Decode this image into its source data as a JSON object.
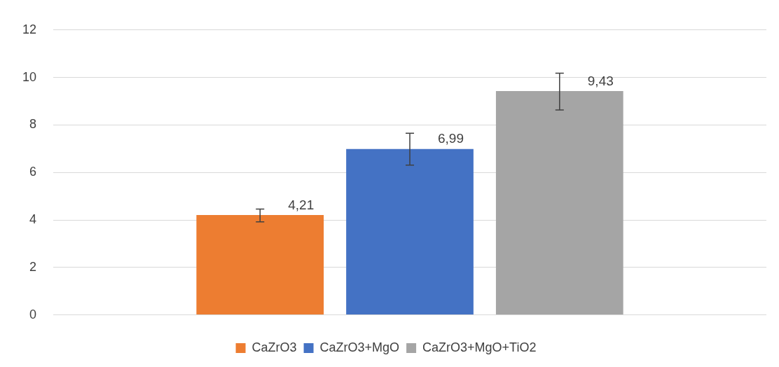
{
  "chart_data": {
    "type": "bar",
    "categories": [
      null
    ],
    "series": [
      {
        "name": "CaZrO3",
        "color": "#ed7d31",
        "values": [
          4.21
        ],
        "errors": [
          [
            3.92,
            4.46
          ]
        ],
        "value_labels": [
          "4,21"
        ]
      },
      {
        "name": "CaZrO3+MgO",
        "color": "#4472c4",
        "values": [
          6.99
        ],
        "errors": [
          [
            6.31,
            7.65
          ]
        ],
        "value_labels": [
          "6,99"
        ]
      },
      {
        "name": "CaZrO3+MgO+TiO2",
        "color": "#a5a5a5",
        "values": [
          9.43
        ],
        "errors": [
          [
            8.63,
            10.18
          ]
        ],
        "value_labels": [
          "9,43"
        ]
      }
    ],
    "ylim": [
      0,
      12
    ],
    "yticks": [
      0,
      2,
      4,
      6,
      8,
      10,
      12
    ],
    "grid": "y",
    "legend": "bottom"
  }
}
